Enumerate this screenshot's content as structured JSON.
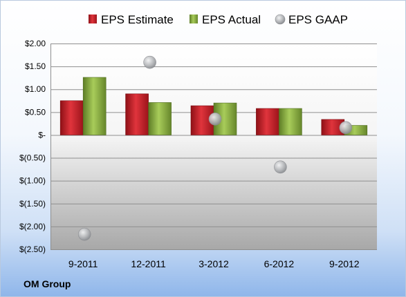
{
  "chart_data": {
    "type": "bar",
    "categories": [
      "9-2011",
      "12-2011",
      "3-2012",
      "6-2012",
      "9-2012"
    ],
    "series": [
      {
        "name": "EPS Estimate",
        "values": [
          0.75,
          0.9,
          0.64,
          0.58,
          0.34
        ],
        "color": "#c0202a"
      },
      {
        "name": "EPS Actual",
        "values": [
          1.26,
          0.71,
          0.7,
          0.58,
          0.21
        ],
        "color": "#8bb140"
      }
    ],
    "scatter_series": {
      "name": "EPS GAAP",
      "values": [
        -2.17,
        1.59,
        0.35,
        -0.7,
        0.16
      ],
      "color": "#a9abad"
    },
    "ylim": [
      -2.5,
      2.0
    ],
    "yticks": [
      2.0,
      1.5,
      1.0,
      0.5,
      0,
      -0.5,
      -1.0,
      -1.5,
      -2.0,
      -2.5
    ],
    "ytick_labels": [
      "$2.00",
      "$1.50",
      "$1.00",
      "$0.50",
      "$-",
      "$(0.50)",
      "$(1.00)",
      "$(1.50)",
      "$(2.00)",
      "$(2.50)"
    ],
    "grid": true,
    "legend": "top"
  },
  "footer": {
    "company": "OM Group"
  }
}
